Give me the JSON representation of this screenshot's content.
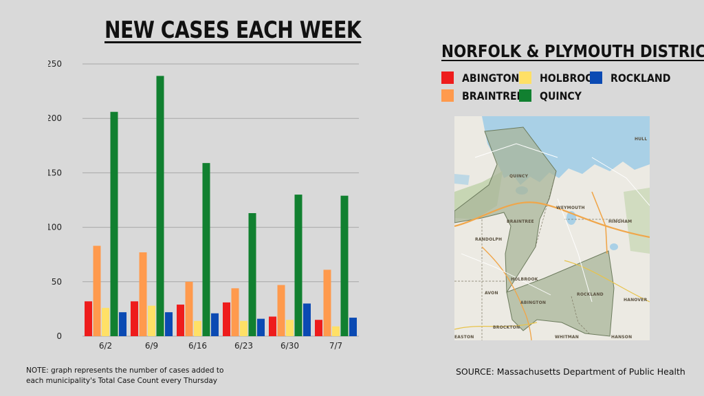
{
  "title": "NEW CASES EACH WEEK",
  "district": {
    "title": "NORFOLK & PLYMOUTH DISTRICT",
    "legend": [
      {
        "name": "ABINGTON",
        "color": "#ee1c1c"
      },
      {
        "name": "HOLBROOK",
        "color": "#ffe066"
      },
      {
        "name": "ROCKLAND",
        "color": "#0b4ab3"
      },
      {
        "name": "BRAINTREE",
        "color": "#ff9a4d"
      },
      {
        "name": "QUINCY",
        "color": "#118030"
      }
    ]
  },
  "map": {
    "labels": [
      "QUINCY",
      "WEYMOUTH",
      "HINGHAM",
      "BRAINTREE",
      "RANDOLPH",
      "HOLBROOK",
      "AVON",
      "ABINGTON",
      "ROCKLAND",
      "HANOVER",
      "BROCKTON",
      "WHITMAN",
      "HANSON",
      "EASTON",
      "HULL"
    ]
  },
  "chart_data": {
    "type": "bar",
    "categories": [
      "6/2",
      "6/9",
      "6/16",
      "6/23",
      "6/30",
      "7/7"
    ],
    "series": [
      {
        "name": "ABINGTON",
        "color": "#ee1c1c",
        "values": [
          32,
          32,
          29,
          31,
          18,
          15
        ]
      },
      {
        "name": "BRAINTREE",
        "color": "#ff9a4d",
        "values": [
          83,
          77,
          50,
          44,
          47,
          61
        ]
      },
      {
        "name": "HOLBROOK",
        "color": "#ffe066",
        "values": [
          26,
          28,
          14,
          14,
          15,
          9
        ]
      },
      {
        "name": "QUINCY",
        "color": "#118030",
        "values": [
          206,
          239,
          159,
          113,
          130,
          129
        ]
      },
      {
        "name": "ROCKLAND",
        "color": "#0b4ab3",
        "values": [
          22,
          22,
          21,
          16,
          30,
          17
        ]
      }
    ],
    "ylim": [
      0,
      250
    ],
    "yticks": [
      0,
      50,
      100,
      150,
      200,
      250
    ],
    "grid": true
  },
  "note": "NOTE: graph represents the number of cases added to each municipality's Total Case Count every Thursday",
  "source": "SOURCE: Massachusetts Department of Public Health"
}
